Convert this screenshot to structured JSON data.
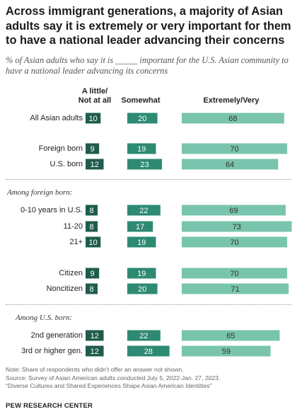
{
  "title": "Across immigrant generations, a majority of Asian adults say it is extremely or very important for them to have a national leader advancing their concerns",
  "subtitle": "% of Asian adults who say it is _____ important for the U.S. Asian community to have a national leader advancing its concerns",
  "chart_data": {
    "type": "bar",
    "title": "Across immigrant generations, a majority of Asian adults say it is extremely or very important for them to have a national leader advancing their concerns",
    "stacked": false,
    "columns": [
      "A little/ Not at all",
      "Somewhat",
      "Extremely/Very"
    ],
    "sections": [
      "",
      "",
      "Among foreign born:",
      "",
      "Among U.S. born:"
    ],
    "categories": [
      "All Asian adults",
      "Foreign born",
      "U.S. born",
      "0-10 years in U.S.",
      "11-20",
      "21+",
      "Citizen",
      "Noncitizen",
      "2nd generation",
      "3rd or higher gen."
    ],
    "series": [
      {
        "name": "A little/ Not at all",
        "color": "#1f5c4d",
        "values": [
          10,
          9,
          12,
          8,
          8,
          10,
          9,
          8,
          12,
          12
        ]
      },
      {
        "name": "Somewhat",
        "color": "#2e8a72",
        "values": [
          20,
          19,
          23,
          22,
          17,
          19,
          19,
          20,
          22,
          28
        ]
      },
      {
        "name": "Extremely/Very",
        "color": "#79c4ad",
        "values": [
          68,
          70,
          64,
          69,
          73,
          70,
          70,
          71,
          65,
          59
        ]
      }
    ],
    "legend": "none",
    "grid": false
  },
  "labels": {
    "col_little_1": "A little/",
    "col_little_2": "Not at all",
    "col_somewhat": "Somewhat",
    "col_extremely": "Extremely/Very",
    "rows": [
      "All Asian adults",
      "Foreign born",
      "U.S. born",
      "0-10 years in U.S.",
      "11-20",
      "21+",
      "Citizen",
      "Noncitizen",
      "2nd generation",
      "3rd or higher gen."
    ],
    "section_foreign": "Among foreign born:",
    "section_us": "Among U.S. born:"
  },
  "notes": {
    "note": "Note: Share of respondents who didn’t offer an answer not shown.",
    "source": "Source: Survey of Asian American adults conducted July 5, 2022-Jan. 27, 2023.",
    "report": "“Diverse Cultures and Shared Experiences Shape Asian American Identities”"
  },
  "brand": "PEW RESEARCH CENTER"
}
